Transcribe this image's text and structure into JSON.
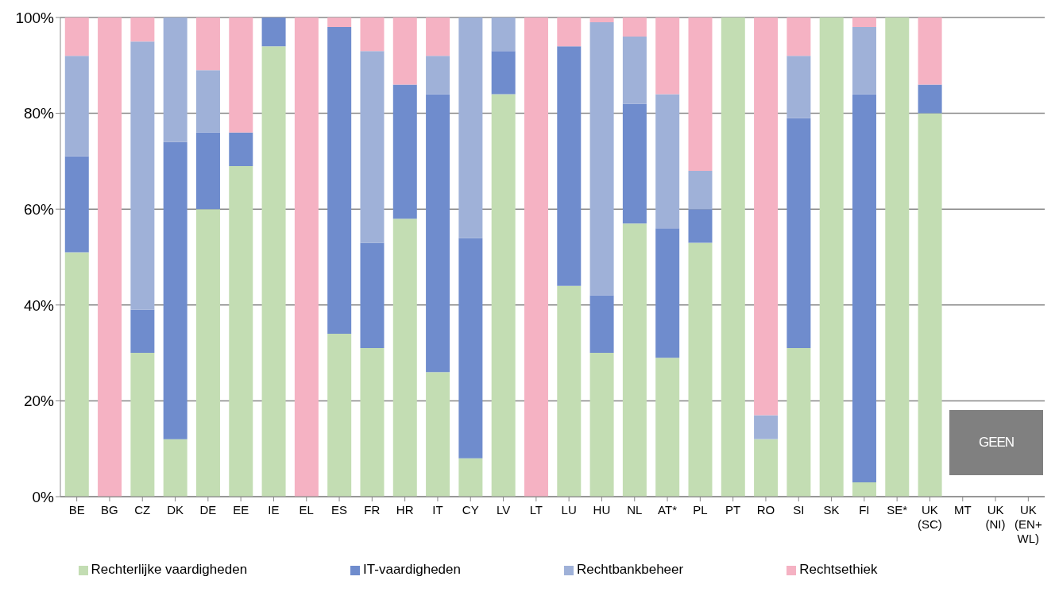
{
  "chart_data": {
    "type": "bar",
    "stacked": true,
    "categories": [
      "BE",
      "BG",
      "CZ",
      "DK",
      "DE",
      "EE",
      "IE",
      "EL",
      "ES",
      "FR",
      "HR",
      "IT",
      "CY",
      "LV",
      "LT",
      "LU",
      "HU",
      "NL",
      "AT*",
      "PL",
      "PT",
      "RO",
      "SI",
      "SK",
      "FI",
      "SE*",
      "UK (SC)",
      "MT",
      "UK (NI)",
      "UK (EN+WL)"
    ],
    "series": [
      {
        "name": "Rechterlijke vaardigheden",
        "color": "#c3ddb3",
        "values": [
          51,
          0,
          30,
          12,
          60,
          69,
          94,
          0,
          34,
          31,
          58,
          26,
          8,
          84,
          0,
          44,
          30,
          57,
          29,
          53,
          100,
          12,
          31,
          100,
          3,
          100,
          80,
          null,
          null,
          null
        ]
      },
      {
        "name": "IT-vaardigheden",
        "color": "#6f8ccd",
        "values": [
          20,
          0,
          9,
          62,
          16,
          7,
          6,
          0,
          64,
          22,
          28,
          58,
          46,
          9,
          0,
          50,
          12,
          25,
          27,
          7,
          0,
          0,
          48,
          0,
          81,
          0,
          6,
          null,
          null,
          null
        ]
      },
      {
        "name": "Rechtbankbeheer",
        "color": "#9fb1d8",
        "values": [
          21,
          0,
          56,
          26,
          13,
          0,
          0,
          0,
          0,
          40,
          0,
          8,
          46,
          7,
          0,
          0,
          57,
          14,
          28,
          8,
          0,
          5,
          13,
          0,
          14,
          0,
          0,
          null,
          null,
          null
        ]
      },
      {
        "name": "Rechtsethiek",
        "color": "#f5b2c3",
        "values": [
          8,
          100,
          5,
          0,
          11,
          24,
          0,
          100,
          2,
          7,
          14,
          8,
          0,
          0,
          100,
          6,
          1,
          4,
          16,
          32,
          0,
          83,
          8,
          0,
          2,
          0,
          14,
          null,
          null,
          null
        ]
      }
    ],
    "ylim": [
      0,
      100
    ],
    "yticks": [
      {
        "value": 0,
        "label": "0%"
      },
      {
        "value": 20,
        "label": "20%"
      },
      {
        "value": 40,
        "label": "40%"
      },
      {
        "value": 60,
        "label": "60%"
      },
      {
        "value": 80,
        "label": "80%"
      },
      {
        "value": 100,
        "label": "100%"
      }
    ],
    "grid": "y",
    "legend": "bottom",
    "annotations": [
      "GEEN"
    ]
  }
}
